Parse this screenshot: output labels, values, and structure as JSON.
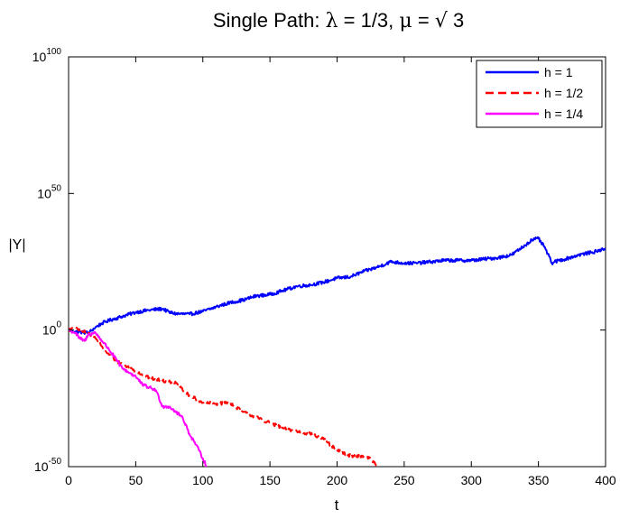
{
  "chart_data": {
    "type": "line",
    "title": {
      "prefix": "Single Path: ",
      "lambda_symbol": "λ",
      "lambda_eq": " = 1/3, ",
      "mu_symbol": "μ",
      "mu_eq": " = ",
      "sqrt_symbol": "√",
      "mu_value": " 3"
    },
    "xlabel": "t",
    "ylabel": "|Y|",
    "y_scale": "log10",
    "xlim": [
      0,
      400
    ],
    "ylim_log10": [
      -50,
      100
    ],
    "x_ticks": [
      0,
      50,
      100,
      150,
      200,
      250,
      300,
      350,
      400
    ],
    "y_ticks": [
      {
        "base": "10",
        "exp": "-50",
        "log10": -50
      },
      {
        "base": "10",
        "exp": "0",
        "log10": 0
      },
      {
        "base": "10",
        "exp": "50",
        "log10": 50
      },
      {
        "base": "10",
        "exp": "100",
        "log10": 100
      }
    ],
    "grid": false,
    "legend": {
      "placement": "top-right",
      "entries": [
        {
          "label": "h = 1",
          "color": "#0000FF",
          "style": "solid"
        },
        {
          "label": "h = 1/2",
          "color": "#FF0000",
          "style": "dashed"
        },
        {
          "label": "h = 1/4",
          "color": "#FF00FF",
          "style": "solid"
        }
      ]
    },
    "series": [
      {
        "name": "h = 1",
        "color": "#0000FF",
        "style": "solid",
        "x": [
          0,
          5,
          10,
          15,
          20,
          25,
          30,
          40,
          50,
          60,
          70,
          75,
          80,
          90,
          100,
          110,
          120,
          130,
          140,
          150,
          160,
          170,
          180,
          190,
          200,
          210,
          220,
          230,
          240,
          250,
          260,
          270,
          280,
          290,
          300,
          310,
          320,
          330,
          340,
          345,
          350,
          355,
          360,
          365,
          370,
          380,
          390,
          395,
          400
        ],
        "y_log10": [
          0,
          -0.5,
          -0.8,
          -1,
          1,
          2.5,
          3.5,
          5,
          6.5,
          7.3,
          7.8,
          6.5,
          6,
          5.8,
          6.8,
          8.5,
          10,
          11,
          12.5,
          13,
          14.5,
          16,
          16.5,
          17.5,
          19,
          19.5,
          21.5,
          23,
          25,
          24.5,
          24.5,
          25,
          25.5,
          25.5,
          25.5,
          26,
          26.5,
          27.5,
          31,
          33,
          33.5,
          30,
          24.5,
          25.5,
          26,
          27.5,
          28.5,
          29,
          30
        ]
      },
      {
        "name": "h = 1/2",
        "color": "#FF0000",
        "style": "dashed",
        "x": [
          0,
          5,
          10,
          15,
          20,
          25,
          30,
          35,
          40,
          50,
          60,
          70,
          80,
          85,
          90,
          100,
          110,
          120,
          130,
          140,
          150,
          160,
          170,
          180,
          190,
          200,
          210,
          220,
          225,
          230
        ],
        "y_log10": [
          0,
          0.5,
          -0.5,
          -1,
          -3,
          -6,
          -9,
          -11,
          -12.5,
          -15,
          -17.5,
          -18.5,
          -19.5,
          -22,
          -24,
          -26.5,
          -27,
          -26.5,
          -30,
          -32,
          -34,
          -36,
          -37,
          -38,
          -40,
          -44,
          -46,
          -46,
          -47,
          -50
        ]
      },
      {
        "name": "h = 1/4",
        "color": "#FF00FF",
        "style": "solid",
        "x": [
          0,
          5,
          8,
          12,
          15,
          20,
          25,
          30,
          40,
          50,
          55,
          60,
          65,
          70,
          75,
          80,
          85,
          90,
          95,
          100,
          103
        ],
        "y_log10": [
          0,
          -1,
          -3,
          -4,
          -1.5,
          -1,
          -4,
          -7,
          -14,
          -17,
          -20,
          -21,
          -22,
          -28,
          -28,
          -30,
          -32,
          -38,
          -42,
          -47,
          -50
        ]
      }
    ]
  }
}
